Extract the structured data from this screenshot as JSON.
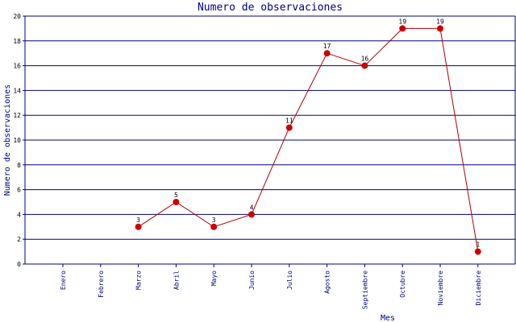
{
  "chart_data": {
    "type": "line",
    "title": "Numero de observaciones",
    "xlabel": "Mes",
    "ylabel": "Numero de observaciones",
    "categories": [
      "Enero",
      "Febrero",
      "Marzo",
      "Abril",
      "Mayo",
      "Junio",
      "Julio",
      "Agosto",
      "Septiembre",
      "Octubre",
      "Noviembre",
      "Diciembre"
    ],
    "series": [
      {
        "values": [
          null,
          null,
          3,
          5,
          3,
          4,
          11,
          17,
          16,
          19,
          19,
          1
        ]
      }
    ],
    "ylim": [
      0,
      20
    ],
    "yticks": [
      0,
      2,
      4,
      6,
      8,
      10,
      12,
      14,
      16,
      18,
      20
    ],
    "grid": true,
    "colors": {
      "line": "#b00000",
      "marker": "#cc0000",
      "grid": "#000080",
      "axis": "#000080",
      "text": "#000080"
    }
  }
}
